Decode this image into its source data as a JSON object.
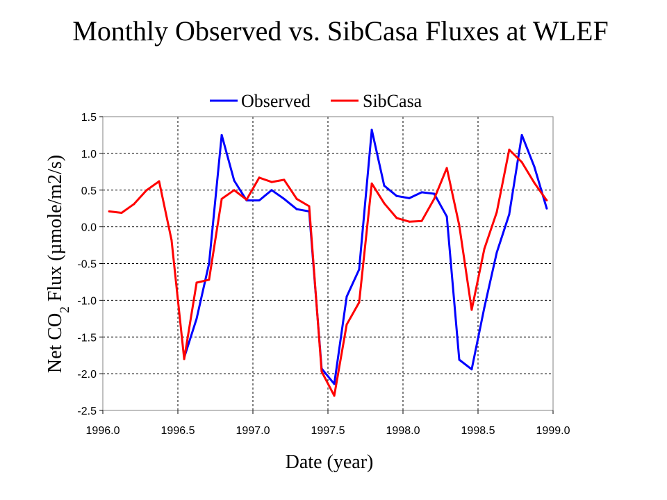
{
  "chart_data": {
    "type": "line",
    "title": "Monthly Observed vs. SibCasa Fluxes at WLEF",
    "xlabel": "Date (year)",
    "ylabel_parts": {
      "before": "Net CO",
      "sub": "2",
      "after": " Flux (µmole/m2/s)"
    },
    "xlim": [
      1996.0,
      1999.0
    ],
    "ylim": [
      -2.5,
      1.5
    ],
    "x_ticks": [
      "1996.0",
      "1996.5",
      "1997.0",
      "1997.5",
      "1998.0",
      "1998.5",
      "1999.0"
    ],
    "y_ticks": [
      "1.5",
      "1.0",
      "0.5",
      "0.0",
      "-0.5",
      "-1.0",
      "-1.5",
      "-2.0",
      "-2.5"
    ],
    "grid": true,
    "legend_position": "top",
    "series": [
      {
        "name": "Observed",
        "color": "#0000ff",
        "x": [
          1996.542,
          1996.625,
          1996.708,
          1996.792,
          1996.875,
          1996.958,
          1997.042,
          1997.125,
          1997.208,
          1997.292,
          1997.375,
          1997.458,
          1997.542,
          1997.625,
          1997.708,
          1997.792,
          1997.875,
          1997.958,
          1998.042,
          1998.125,
          1998.208,
          1998.292,
          1998.375,
          1998.458,
          1998.542,
          1998.625,
          1998.708,
          1998.792,
          1998.875,
          1998.958
        ],
        "y": [
          -1.78,
          -1.25,
          -0.5,
          1.25,
          0.63,
          0.36,
          0.36,
          0.5,
          0.38,
          0.24,
          0.21,
          -1.93,
          -2.14,
          -0.95,
          -0.58,
          1.32,
          0.56,
          0.42,
          0.39,
          0.47,
          0.45,
          0.14,
          -1.81,
          -1.94,
          -1.1,
          -0.35,
          0.17,
          1.25,
          0.82,
          0.25
        ]
      },
      {
        "name": "SibCasa",
        "color": "#ff0000",
        "x": [
          1996.042,
          1996.125,
          1996.208,
          1996.292,
          1996.375,
          1996.458,
          1996.542,
          1996.625,
          1996.708,
          1996.792,
          1996.875,
          1996.958,
          1997.042,
          1997.125,
          1997.208,
          1997.292,
          1997.375,
          1997.458,
          1997.542,
          1997.625,
          1997.708,
          1997.792,
          1997.875,
          1997.958,
          1998.042,
          1998.125,
          1998.208,
          1998.292,
          1998.375,
          1998.458,
          1998.542,
          1998.625,
          1998.708,
          1998.792,
          1998.875,
          1998.958
        ],
        "y": [
          0.21,
          0.19,
          0.31,
          0.5,
          0.62,
          -0.18,
          -1.8,
          -0.76,
          -0.72,
          0.38,
          0.5,
          0.37,
          0.67,
          0.61,
          0.64,
          0.38,
          0.28,
          -1.97,
          -2.3,
          -1.33,
          -1.03,
          0.59,
          0.32,
          0.12,
          0.07,
          0.08,
          0.38,
          0.8,
          0.02,
          -1.13,
          -0.3,
          0.2,
          1.05,
          0.88,
          0.6,
          0.36
        ]
      }
    ]
  }
}
